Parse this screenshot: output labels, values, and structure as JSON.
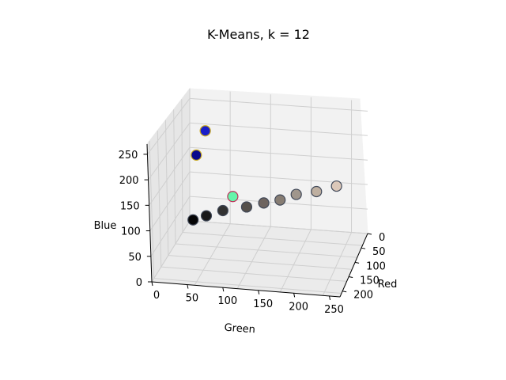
{
  "chart_data": {
    "type": "scatter",
    "projection": "3d",
    "title": "K-Means, k = 12",
    "xlabel": "Red",
    "ylabel": "Green",
    "zlabel": "Blue",
    "x_ticks": [
      "0",
      "50",
      "100",
      "150",
      "200"
    ],
    "y_ticks": [
      "0",
      "50",
      "100",
      "150",
      "200",
      "250"
    ],
    "z_ticks": [
      "0",
      "50",
      "100",
      "150",
      "200",
      "250"
    ],
    "grid": true,
    "points": [
      {
        "red": 5,
        "green": 5,
        "blue": 5,
        "color": "#050505"
      },
      {
        "red": 25,
        "green": 25,
        "blue": 25,
        "color": "#191919"
      },
      {
        "red": 50,
        "green": 50,
        "blue": 50,
        "color": "#323232"
      },
      {
        "red": 85,
        "green": 80,
        "blue": 75,
        "color": "#55504b"
      },
      {
        "red": 110,
        "green": 100,
        "blue": 95,
        "color": "#6e645f"
      },
      {
        "red": 135,
        "green": 125,
        "blue": 115,
        "color": "#877d73"
      },
      {
        "red": 160,
        "green": 150,
        "blue": 140,
        "color": "#a0968c"
      },
      {
        "red": 190,
        "green": 175,
        "blue": 160,
        "color": "#beafa0"
      },
      {
        "red": 220,
        "green": 200,
        "blue": 185,
        "color": "#dcc8b9"
      },
      {
        "red": 100,
        "green": 245,
        "blue": 170,
        "color": "#64f5aa"
      },
      {
        "red": 25,
        "green": 30,
        "blue": 200,
        "color": "#191ec8"
      },
      {
        "red": 10,
        "green": 10,
        "blue": 140,
        "color": "#0a0a8c"
      }
    ]
  }
}
